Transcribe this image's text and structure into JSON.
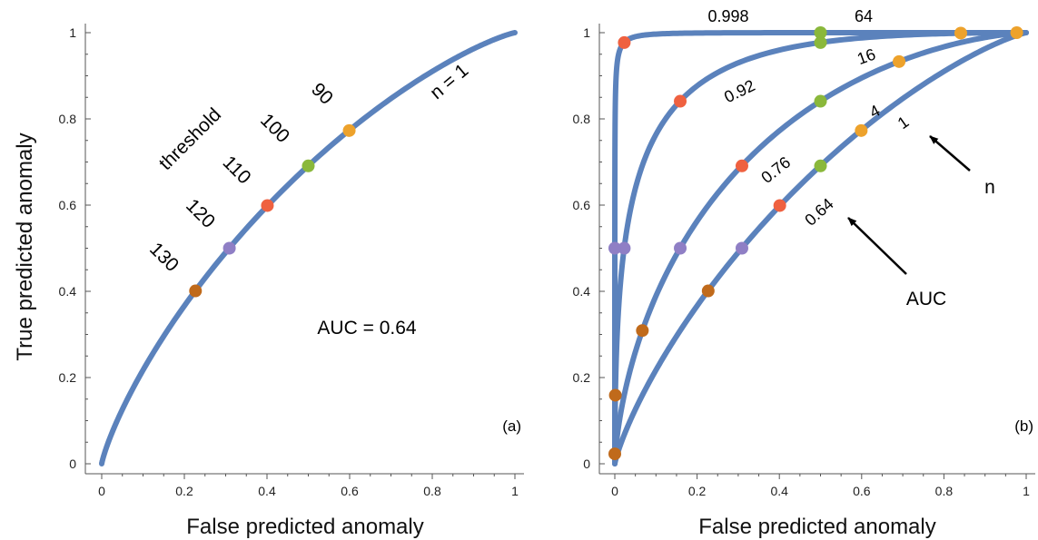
{
  "colors": {
    "curve": "#5b82bc",
    "axis": "#555555",
    "threshold_markers": {
      "130": "#c06a1b",
      "120": "#8f7fc5",
      "110": "#ef6140",
      "100": "#8ab83b",
      "90": "#eda22c"
    }
  },
  "xlabel": "False predicted anomaly",
  "ylabel": "True predicted anomaly",
  "chart_data": [
    {
      "panel": "(a)",
      "type": "line",
      "xlabel": "False predicted anomaly",
      "ylabel": "True predicted anomaly",
      "xlim": [
        0,
        1
      ],
      "ylim": [
        0,
        1
      ],
      "xticks": [
        "0",
        "0.2",
        "0.4",
        "0.6",
        "0.8",
        "1"
      ],
      "yticks": [
        "0",
        "0.2",
        "0.4",
        "0.6",
        "0.8",
        "1"
      ],
      "grid": false,
      "series": [
        {
          "name": "n = 1",
          "n": 1,
          "auc_label": "AUC = 0.64",
          "points": [
            {
              "threshold": "130",
              "x": 0.227,
              "y": 0.401
            },
            {
              "threshold": "120",
              "x": 0.309,
              "y": 0.5
            },
            {
              "threshold": "110",
              "x": 0.401,
              "y": 0.599
            },
            {
              "threshold": "100",
              "x": 0.5,
              "y": 0.691
            },
            {
              "threshold": "90",
              "x": 0.599,
              "y": 0.773
            }
          ]
        }
      ],
      "annotations": {
        "threshold_title": "threshold",
        "threshold_labels": [
          "130",
          "120",
          "110",
          "100",
          "90"
        ],
        "series_label": "n = 1",
        "auc": "AUC = 0.64"
      }
    },
    {
      "panel": "(b)",
      "type": "line",
      "xlabel": "False predicted anomaly",
      "ylabel": "",
      "xlim": [
        0,
        1
      ],
      "ylim": [
        0,
        1
      ],
      "xticks": [
        "0",
        "0.2",
        "0.4",
        "0.6",
        "0.8",
        "1"
      ],
      "yticks": [
        "0",
        "0.2",
        "0.4",
        "0.6",
        "0.8",
        "1"
      ],
      "grid": false,
      "series": [
        {
          "n": 1,
          "n_label": "1",
          "auc_label": "0.64",
          "points": [
            {
              "threshold": "130",
              "x": 0.227,
              "y": 0.401
            },
            {
              "threshold": "120",
              "x": 0.309,
              "y": 0.5
            },
            {
              "threshold": "110",
              "x": 0.401,
              "y": 0.599
            },
            {
              "threshold": "100",
              "x": 0.5,
              "y": 0.691
            },
            {
              "threshold": "90",
              "x": 0.599,
              "y": 0.773
            }
          ]
        },
        {
          "n": 4,
          "n_label": "4",
          "auc_label": "0.76",
          "points": [
            {
              "threshold": "130",
              "x": 0.067,
              "y": 0.309
            },
            {
              "threshold": "120",
              "x": 0.159,
              "y": 0.5
            },
            {
              "threshold": "110",
              "x": 0.309,
              "y": 0.691
            },
            {
              "threshold": "100",
              "x": 0.5,
              "y": 0.841
            },
            {
              "threshold": "90",
              "x": 0.691,
              "y": 0.933
            }
          ]
        },
        {
          "n": 16,
          "n_label": "16",
          "auc_label": "0.92",
          "points": [
            {
              "threshold": "130",
              "x": 0.0013,
              "y": 0.159
            },
            {
              "threshold": "120",
              "x": 0.023,
              "y": 0.5
            },
            {
              "threshold": "110",
              "x": 0.159,
              "y": 0.841
            },
            {
              "threshold": "100",
              "x": 0.5,
              "y": 0.977
            },
            {
              "threshold": "90",
              "x": 0.841,
              "y": 0.999
            }
          ]
        },
        {
          "n": 64,
          "n_label": "64",
          "auc_label": "0.998",
          "points": [
            {
              "threshold": "130",
              "x": 0.0,
              "y": 0.023
            },
            {
              "threshold": "120",
              "x": 0.0,
              "y": 0.5
            },
            {
              "threshold": "110",
              "x": 0.023,
              "y": 0.977
            },
            {
              "threshold": "100",
              "x": 0.5,
              "y": 1.0
            },
            {
              "threshold": "90",
              "x": 0.977,
              "y": 1.0
            }
          ]
        }
      ],
      "annotations": {
        "n_arrow_label": "n",
        "auc_arrow_label": "AUC"
      }
    }
  ]
}
